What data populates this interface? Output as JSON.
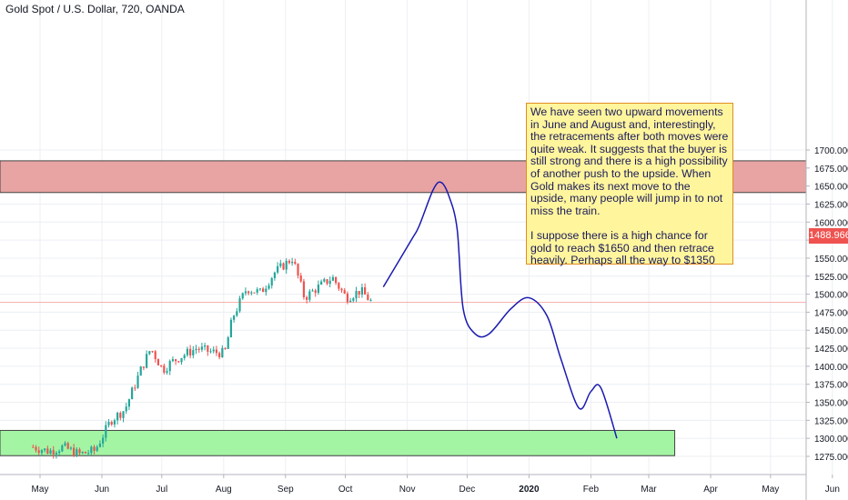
{
  "title": "Gold Spot / U.S. Dollar, 720, OANDA",
  "colors": {
    "bull": "#26a69a",
    "bear": "#ef5350",
    "resistance_fill": "#e8a3a3",
    "support_fill": "#a3f5a3",
    "drawing": "#1a1ab0",
    "note_bg": "#fff59d",
    "grid": "#eceff3"
  },
  "chart_data": {
    "type": "candlestick",
    "symbol": "XAUUSD",
    "timeframe": "720",
    "ylim": [
      1262,
      1712
    ],
    "y_ticks": [
      "1700.000",
      "1675.000",
      "1650.000",
      "1625.000",
      "1600.000",
      "1575.000",
      "1550.000",
      "1525.000",
      "1500.000",
      "1475.000",
      "1450.000",
      "1425.000",
      "1400.000",
      "1375.000",
      "1350.000",
      "1325.000",
      "1300.000",
      "1275.000"
    ],
    "x_ticks": [
      "May",
      "Jun",
      "Jul",
      "Aug",
      "Sep",
      "Oct",
      "Nov",
      "Dec",
      "2020",
      "Feb",
      "Mar",
      "Apr",
      "May",
      "Jun"
    ],
    "last_price": "1488.966",
    "zones": [
      {
        "name": "resistance",
        "from": 1641,
        "to": 1685
      },
      {
        "name": "support",
        "from": 1276,
        "to": 1311
      }
    ],
    "price_path": [
      [
        "2019-04-27",
        1288
      ],
      [
        "2019-05-05",
        1282
      ],
      [
        "2019-05-12",
        1288
      ],
      [
        "2019-05-20",
        1278
      ],
      [
        "2019-05-28",
        1283
      ],
      [
        "2019-06-05",
        1325
      ],
      [
        "2019-06-12",
        1340
      ],
      [
        "2019-06-20",
        1395
      ],
      [
        "2019-06-25",
        1425
      ],
      [
        "2019-07-01",
        1395
      ],
      [
        "2019-07-05",
        1405
      ],
      [
        "2019-07-11",
        1415
      ],
      [
        "2019-07-18",
        1425
      ],
      [
        "2019-07-25",
        1420
      ],
      [
        "2019-08-01",
        1418
      ],
      [
        "2019-08-05",
        1468
      ],
      [
        "2019-08-12",
        1508
      ],
      [
        "2019-08-19",
        1502
      ],
      [
        "2019-08-26",
        1530
      ],
      [
        "2019-09-04",
        1550
      ],
      [
        "2019-09-10",
        1495
      ],
      [
        "2019-09-16",
        1508
      ],
      [
        "2019-09-24",
        1523
      ],
      [
        "2019-10-01",
        1495
      ],
      [
        "2019-10-08",
        1505
      ],
      [
        "2019-10-14",
        1488
      ]
    ],
    "projection": [
      [
        "2019-10-20",
        1510
      ],
      [
        "2019-11-03",
        1575
      ],
      [
        "2019-11-07",
        1595
      ],
      [
        "2019-11-14",
        1645
      ],
      [
        "2019-11-18",
        1655
      ],
      [
        "2019-11-22",
        1635
      ],
      [
        "2019-11-26",
        1590
      ],
      [
        "2019-11-29",
        1480
      ],
      [
        "2019-12-05",
        1445
      ],
      [
        "2019-12-12",
        1445
      ],
      [
        "2019-12-23",
        1480
      ],
      [
        "2020-01-01",
        1495
      ],
      [
        "2020-01-10",
        1470
      ],
      [
        "2020-01-17",
        1410
      ],
      [
        "2020-01-26",
        1342
      ],
      [
        "2020-02-01",
        1365
      ],
      [
        "2020-02-06",
        1370
      ],
      [
        "2020-02-14",
        1300
      ]
    ]
  },
  "note": {
    "text": "We have seen two upward movements in June and August and, interestingly, the retracements after both moves were quite weak. It suggests that the buyer is still strong and there is a high possibility of another push to the upside. When Gold makes its next move to the upside, many people will jump in to not miss the train.\n\nI suppose there is a high chance for gold to reach $1650 and then retrace heavily. Perhaps all the way to $1350"
  }
}
